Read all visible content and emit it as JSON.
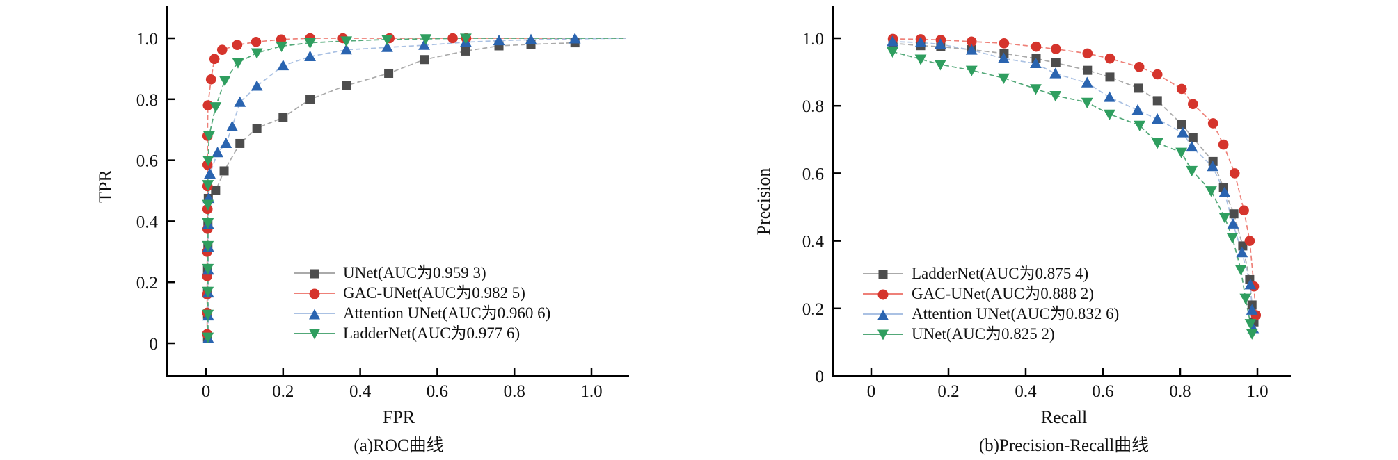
{
  "page": {
    "background": "#ffffff",
    "axis_color": "#000000",
    "text_color": "#111111"
  },
  "chart_data": [
    {
      "id": "roc",
      "type": "line",
      "caption": "(a)ROC曲线",
      "xlabel": "FPR",
      "ylabel": "TPR",
      "xlim": [
        -0.1,
        1.1
      ],
      "ylim": [
        -0.11,
        1.1
      ],
      "grid": false,
      "legend_position": "inside lower right",
      "x_ticks": {
        "values": [
          0,
          0.2,
          0.4,
          0.6,
          0.8,
          1.0
        ],
        "labels": [
          "0",
          "0.2",
          "0.4",
          "0.6",
          "0.8",
          "1.0"
        ]
      },
      "y_ticks": {
        "values": [
          0,
          0.2,
          0.4,
          0.6,
          0.8,
          1.0
        ],
        "labels": [
          "0",
          "0.2",
          "0.4",
          "0.6",
          "0.8",
          "1.0"
        ]
      },
      "series": [
        {
          "name": "UNet",
          "legend_label": "UNet(AUC为0.959 3)",
          "auc": "0.959 3",
          "marker": "square",
          "marker_color": "#4d4d4d",
          "line_color": "#aaaaaa",
          "points": [
            [
              0.004,
              0.02
            ],
            [
              0.004,
              0.095
            ],
            [
              0.004,
              0.17
            ],
            [
              0.004,
              0.245
            ],
            [
              0.005,
              0.32
            ],
            [
              0.005,
              0.395
            ],
            [
              0.006,
              0.475
            ],
            [
              0.025,
              0.5
            ],
            [
              0.047,
              0.565
            ],
            [
              0.088,
              0.655
            ],
            [
              0.132,
              0.705
            ],
            [
              0.2,
              0.74
            ],
            [
              0.27,
              0.8
            ],
            [
              0.364,
              0.845
            ],
            [
              0.474,
              0.885
            ],
            [
              0.566,
              0.93
            ],
            [
              0.674,
              0.958
            ],
            [
              0.76,
              0.975
            ],
            [
              0.843,
              0.98
            ],
            [
              0.957,
              0.985
            ]
          ]
        },
        {
          "name": "GAC-UNet",
          "legend_label": "GAC-UNet(AUC为0.982 5)",
          "auc": "0.982 5",
          "marker": "circle",
          "marker_color": "#d5342c",
          "line_color": "#ee8078",
          "extend": [
            1.09,
            1.0
          ],
          "points": [
            [
              0.003,
              0.03
            ],
            [
              0.003,
              0.1
            ],
            [
              0.003,
              0.16
            ],
            [
              0.003,
              0.22
            ],
            [
              0.003,
              0.3
            ],
            [
              0.004,
              0.375
            ],
            [
              0.004,
              0.44
            ],
            [
              0.004,
              0.515
            ],
            [
              0.004,
              0.585
            ],
            [
              0.004,
              0.68
            ],
            [
              0.005,
              0.78
            ],
            [
              0.013,
              0.865
            ],
            [
              0.022,
              0.932
            ],
            [
              0.042,
              0.962
            ],
            [
              0.081,
              0.978
            ],
            [
              0.13,
              0.988
            ],
            [
              0.195,
              0.996
            ],
            [
              0.27,
              1.0
            ],
            [
              0.355,
              1.0
            ],
            [
              0.476,
              1.0
            ],
            [
              0.64,
              1.0
            ],
            [
              0.675,
              1.0
            ]
          ]
        },
        {
          "name": "Attention UNet",
          "legend_label": "Attention UNet(AUC为0.960 6)",
          "auc": "0.960 6",
          "marker": "triangle-up",
          "marker_color": "#2a64b0",
          "line_color": "#aac1e3",
          "extend": [
            1.09,
            1.0
          ],
          "points": [
            [
              0.006,
              0.015
            ],
            [
              0.006,
              0.09
            ],
            [
              0.006,
              0.165
            ],
            [
              0.006,
              0.24
            ],
            [
              0.006,
              0.315
            ],
            [
              0.006,
              0.39
            ],
            [
              0.007,
              0.475
            ],
            [
              0.01,
              0.555
            ],
            [
              0.03,
              0.625
            ],
            [
              0.052,
              0.655
            ],
            [
              0.068,
              0.71
            ],
            [
              0.088,
              0.79
            ],
            [
              0.132,
              0.843
            ],
            [
              0.2,
              0.91
            ],
            [
              0.27,
              0.94
            ],
            [
              0.364,
              0.962
            ],
            [
              0.47,
              0.97
            ],
            [
              0.566,
              0.977
            ],
            [
              0.674,
              0.987
            ],
            [
              0.76,
              0.992
            ],
            [
              0.843,
              0.995
            ],
            [
              0.957,
              0.998
            ]
          ]
        },
        {
          "name": "LadderNet",
          "legend_label": "LadderNet(AUC为0.977 6)",
          "auc": "0.977 6",
          "marker": "triangle-down",
          "marker_color": "#2f9e5f",
          "line_color": "#52a878",
          "extend": [
            1.09,
            1.0
          ],
          "points": [
            [
              0.005,
              0.02
            ],
            [
              0.005,
              0.095
            ],
            [
              0.005,
              0.17
            ],
            [
              0.005,
              0.245
            ],
            [
              0.005,
              0.32
            ],
            [
              0.005,
              0.395
            ],
            [
              0.005,
              0.455
            ],
            [
              0.005,
              0.52
            ],
            [
              0.006,
              0.6
            ],
            [
              0.008,
              0.68
            ],
            [
              0.025,
              0.775
            ],
            [
              0.049,
              0.862
            ],
            [
              0.083,
              0.92
            ],
            [
              0.132,
              0.952
            ],
            [
              0.196,
              0.974
            ],
            [
              0.27,
              0.985
            ],
            [
              0.364,
              0.991
            ],
            [
              0.47,
              0.996
            ],
            [
              0.57,
              0.998
            ],
            [
              0.674,
              1.0
            ]
          ]
        }
      ]
    },
    {
      "id": "pr",
      "type": "line",
      "caption": "(b)Precision-Recall曲线",
      "xlabel": "Recall",
      "ylabel": "Precision",
      "xlim": [
        -0.1,
        1.09
      ],
      "ylim": [
        0,
        1.1
      ],
      "grid": false,
      "legend_position": "inside lower left",
      "x_ticks": {
        "values": [
          0,
          0.2,
          0.4,
          0.6,
          0.8,
          1.0
        ],
        "labels": [
          "0",
          "0.2",
          "0.4",
          "0.6",
          "0.8",
          "1.0"
        ]
      },
      "y_ticks": {
        "values": [
          0,
          0.2,
          0.4,
          0.6,
          0.8,
          1.0
        ],
        "labels": [
          "0",
          "0.2",
          "0.4",
          "0.6",
          "0.8",
          "1.0"
        ]
      },
      "series": [
        {
          "name": "LadderNet",
          "legend_label": "LadderNet(AUC为0.875 4)",
          "auc": "0.875 4",
          "marker": "square",
          "marker_color": "#4d4d4d",
          "line_color": "#aaaaaa",
          "points": [
            [
              0.056,
              0.985
            ],
            [
              0.128,
              0.978
            ],
            [
              0.18,
              0.975
            ],
            [
              0.26,
              0.966
            ],
            [
              0.344,
              0.955
            ],
            [
              0.427,
              0.94
            ],
            [
              0.478,
              0.927
            ],
            [
              0.56,
              0.905
            ],
            [
              0.618,
              0.885
            ],
            [
              0.692,
              0.852
            ],
            [
              0.741,
              0.815
            ],
            [
              0.804,
              0.745
            ],
            [
              0.833,
              0.705
            ],
            [
              0.885,
              0.635
            ],
            [
              0.912,
              0.558
            ],
            [
              0.939,
              0.48
            ],
            [
              0.962,
              0.385
            ],
            [
              0.98,
              0.285
            ],
            [
              0.986,
              0.21
            ],
            [
              0.991,
              0.16
            ]
          ]
        },
        {
          "name": "GAC-UNet",
          "legend_label": "GAC-UNet(AUC为0.888 2)",
          "auc": "0.888 2",
          "marker": "circle",
          "marker_color": "#d5342c",
          "line_color": "#ee8078",
          "points": [
            [
              0.056,
              0.998
            ],
            [
              0.128,
              0.997
            ],
            [
              0.18,
              0.995
            ],
            [
              0.26,
              0.99
            ],
            [
              0.344,
              0.985
            ],
            [
              0.427,
              0.975
            ],
            [
              0.478,
              0.968
            ],
            [
              0.56,
              0.955
            ],
            [
              0.618,
              0.94
            ],
            [
              0.694,
              0.915
            ],
            [
              0.741,
              0.893
            ],
            [
              0.804,
              0.85
            ],
            [
              0.833,
              0.805
            ],
            [
              0.885,
              0.748
            ],
            [
              0.912,
              0.685
            ],
            [
              0.941,
              0.6
            ],
            [
              0.965,
              0.49
            ],
            [
              0.98,
              0.4
            ],
            [
              0.991,
              0.265
            ],
            [
              0.996,
              0.18
            ]
          ]
        },
        {
          "name": "Attention UNet",
          "legend_label": "Attention UNet(AUC为0.832 6)",
          "auc": "0.832 6",
          "marker": "triangle-up",
          "marker_color": "#2a64b0",
          "line_color": "#aac1e3",
          "points": [
            [
              0.055,
              0.99
            ],
            [
              0.128,
              0.987
            ],
            [
              0.179,
              0.982
            ],
            [
              0.26,
              0.965
            ],
            [
              0.343,
              0.94
            ],
            [
              0.426,
              0.925
            ],
            [
              0.477,
              0.895
            ],
            [
              0.559,
              0.868
            ],
            [
              0.617,
              0.825
            ],
            [
              0.69,
              0.787
            ],
            [
              0.741,
              0.76
            ],
            [
              0.807,
              0.72
            ],
            [
              0.83,
              0.678
            ],
            [
              0.884,
              0.62
            ],
            [
              0.915,
              0.543
            ],
            [
              0.937,
              0.45
            ],
            [
              0.96,
              0.365
            ],
            [
              0.982,
              0.27
            ],
            [
              0.986,
              0.195
            ],
            [
              0.989,
              0.14
            ]
          ]
        },
        {
          "name": "UNet",
          "legend_label": "UNet(AUC为0.825 2)",
          "auc": "0.825 2",
          "marker": "triangle-down",
          "marker_color": "#2f9e5f",
          "line_color": "#52a878",
          "points": [
            [
              0.055,
              0.96
            ],
            [
              0.128,
              0.938
            ],
            [
              0.179,
              0.922
            ],
            [
              0.26,
              0.905
            ],
            [
              0.343,
              0.882
            ],
            [
              0.426,
              0.85
            ],
            [
              0.477,
              0.83
            ],
            [
              0.559,
              0.81
            ],
            [
              0.617,
              0.775
            ],
            [
              0.695,
              0.742
            ],
            [
              0.741,
              0.69
            ],
            [
              0.803,
              0.662
            ],
            [
              0.83,
              0.608
            ],
            [
              0.88,
              0.548
            ],
            [
              0.915,
              0.47
            ],
            [
              0.935,
              0.41
            ],
            [
              0.957,
              0.315
            ],
            [
              0.969,
              0.23
            ],
            [
              0.982,
              0.155
            ],
            [
              0.986,
              0.125
            ]
          ]
        }
      ]
    }
  ]
}
